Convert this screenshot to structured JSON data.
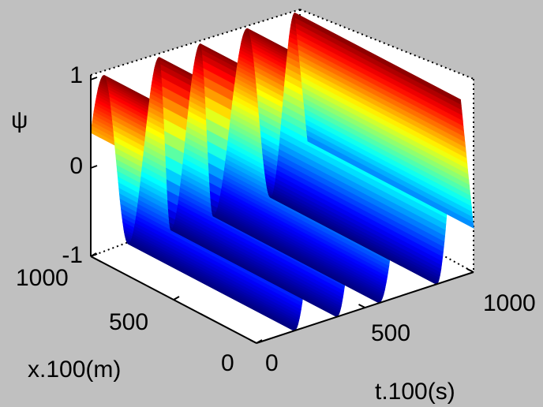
{
  "chart_data": {
    "type": "surface",
    "zlabel": "ψ",
    "xlabel": "t.100(s)",
    "ylabel": "x.100(m)",
    "t_ticks": [
      "0",
      "500",
      "1000"
    ],
    "x_ticks": [
      "0",
      "500",
      "1000"
    ],
    "z_ticks": [
      "-1",
      "0",
      "1"
    ],
    "t_range": [
      0,
      1000
    ],
    "x_range": [
      0,
      1000
    ],
    "z_range": [
      -1,
      1
    ],
    "grid": false,
    "colormap": "jet",
    "wave_crest_t": [
      60,
      315,
      505,
      720,
      940
    ],
    "wave_trough_t": [
      175,
      370,
      565,
      830
    ],
    "x_length": 1000
  },
  "colors": {
    "figure_bg": "#c0c0c0",
    "pane_bg": "#ffffff",
    "axis_color": "#000000"
  }
}
